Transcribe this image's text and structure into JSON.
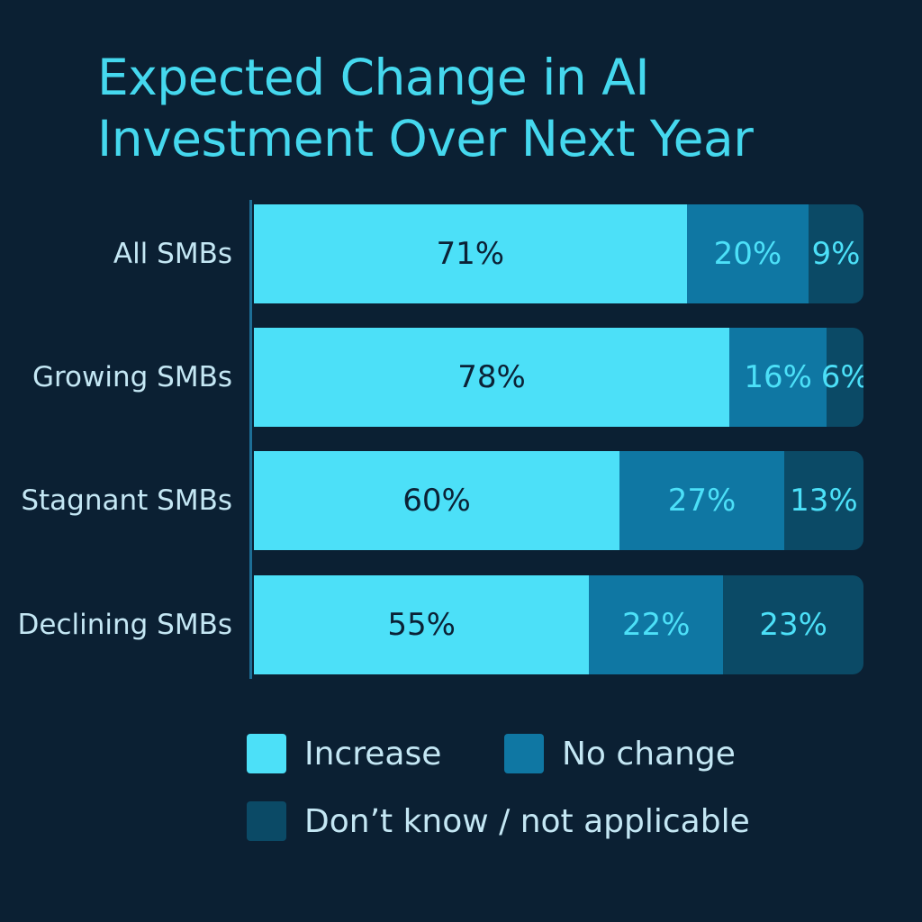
{
  "colors": {
    "background": "#0b2033",
    "title": "#45d8ee",
    "increase": "#4ce0f8",
    "no_change": "#0f77a3",
    "dont_know": "#0b4a66",
    "label_dark": "#0b2236",
    "label_light": "#4ce0f8"
  },
  "chart_data": {
    "type": "bar",
    "orientation": "horizontal",
    "stacked": true,
    "title_lines": [
      "Expected Change in AI",
      "Investment Over Next Year"
    ],
    "categories": [
      "All SMBs",
      "Growing SMBs",
      "Stagnant SMBs",
      "Declining SMBs"
    ],
    "series": [
      {
        "name": "Increase",
        "values": [
          71,
          78,
          60,
          55
        ],
        "labels": [
          "71%",
          "78%",
          "60%",
          "55%"
        ],
        "color": "#4ce0f8"
      },
      {
        "name": "No change",
        "values": [
          20,
          16,
          27,
          22
        ],
        "labels": [
          "20%",
          "16%",
          "27%",
          "22%"
        ],
        "color": "#0f77a3"
      },
      {
        "name": "Don’t know / not applicable",
        "values": [
          9,
          6,
          13,
          23
        ],
        "labels": [
          "9%",
          "6%",
          "13%",
          "23%"
        ],
        "color": "#0b4a66"
      }
    ],
    "xlim": [
      0,
      100
    ],
    "grid": false,
    "legend_position": "bottom"
  },
  "legend": {
    "increase": "Increase",
    "no_change": "No change",
    "dont_know": "Don’t know / not applicable"
  }
}
